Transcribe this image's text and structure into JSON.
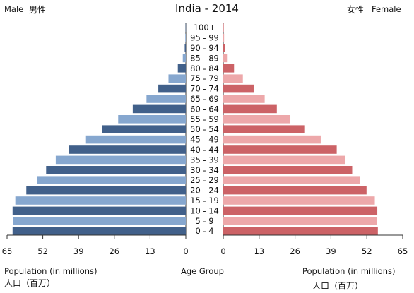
{
  "chart_data": {
    "type": "bar",
    "title": "India - 2014",
    "subtitle": "",
    "left_label": "Male",
    "left_label_cn": "男性",
    "right_label": "Female",
    "right_label_cn": "女性",
    "xlabel_left": "Population (in millions)",
    "xlabel_left_cn": "人口（百万）",
    "xlabel_center": "Age Group",
    "xlabel_right": "Population (in millions)",
    "xlabel_right_cn": "人口（百万）",
    "xlim": [
      0,
      65
    ],
    "x_ticks": [
      65,
      52,
      39,
      26,
      13,
      0
    ],
    "x_ticks_right": [
      0,
      13,
      26,
      39,
      52,
      65
    ],
    "categories": [
      "100+",
      "95 - 99",
      "90 - 94",
      "85 - 89",
      "80 - 84",
      "75 - 79",
      "70 - 74",
      "65 - 69",
      "60 - 64",
      "55 - 59",
      "50 - 54",
      "45 - 49",
      "40 - 44",
      "35 - 39",
      "30 - 34",
      "25 - 29",
      "20 - 24",
      "15 - 19",
      "10 - 14",
      "5 - 9",
      "0 - 4"
    ],
    "series": [
      {
        "name": "Male",
        "values": [
          0.1,
          0.2,
          0.4,
          1.1,
          2.9,
          6.3,
          10.0,
          14.3,
          19.3,
          24.6,
          30.4,
          36.3,
          42.5,
          47.3,
          50.8,
          54.2,
          58.0,
          62.0,
          63.0,
          62.8,
          63.0
        ]
      },
      {
        "name": "Female",
        "values": [
          0.1,
          0.3,
          0.7,
          1.6,
          3.9,
          7.1,
          11.0,
          15.0,
          19.4,
          24.3,
          29.6,
          35.3,
          41.1,
          44.1,
          46.7,
          49.4,
          51.9,
          54.9,
          55.8,
          55.6,
          56.0
        ]
      }
    ],
    "colors": {
      "male_dark": "#41608a",
      "male_light": "#86a7cf",
      "female_dark": "#cc6266",
      "female_light": "#eda8aa",
      "text": "#111111",
      "axis": "#333333"
    },
    "grid": false,
    "legend": "none"
  }
}
